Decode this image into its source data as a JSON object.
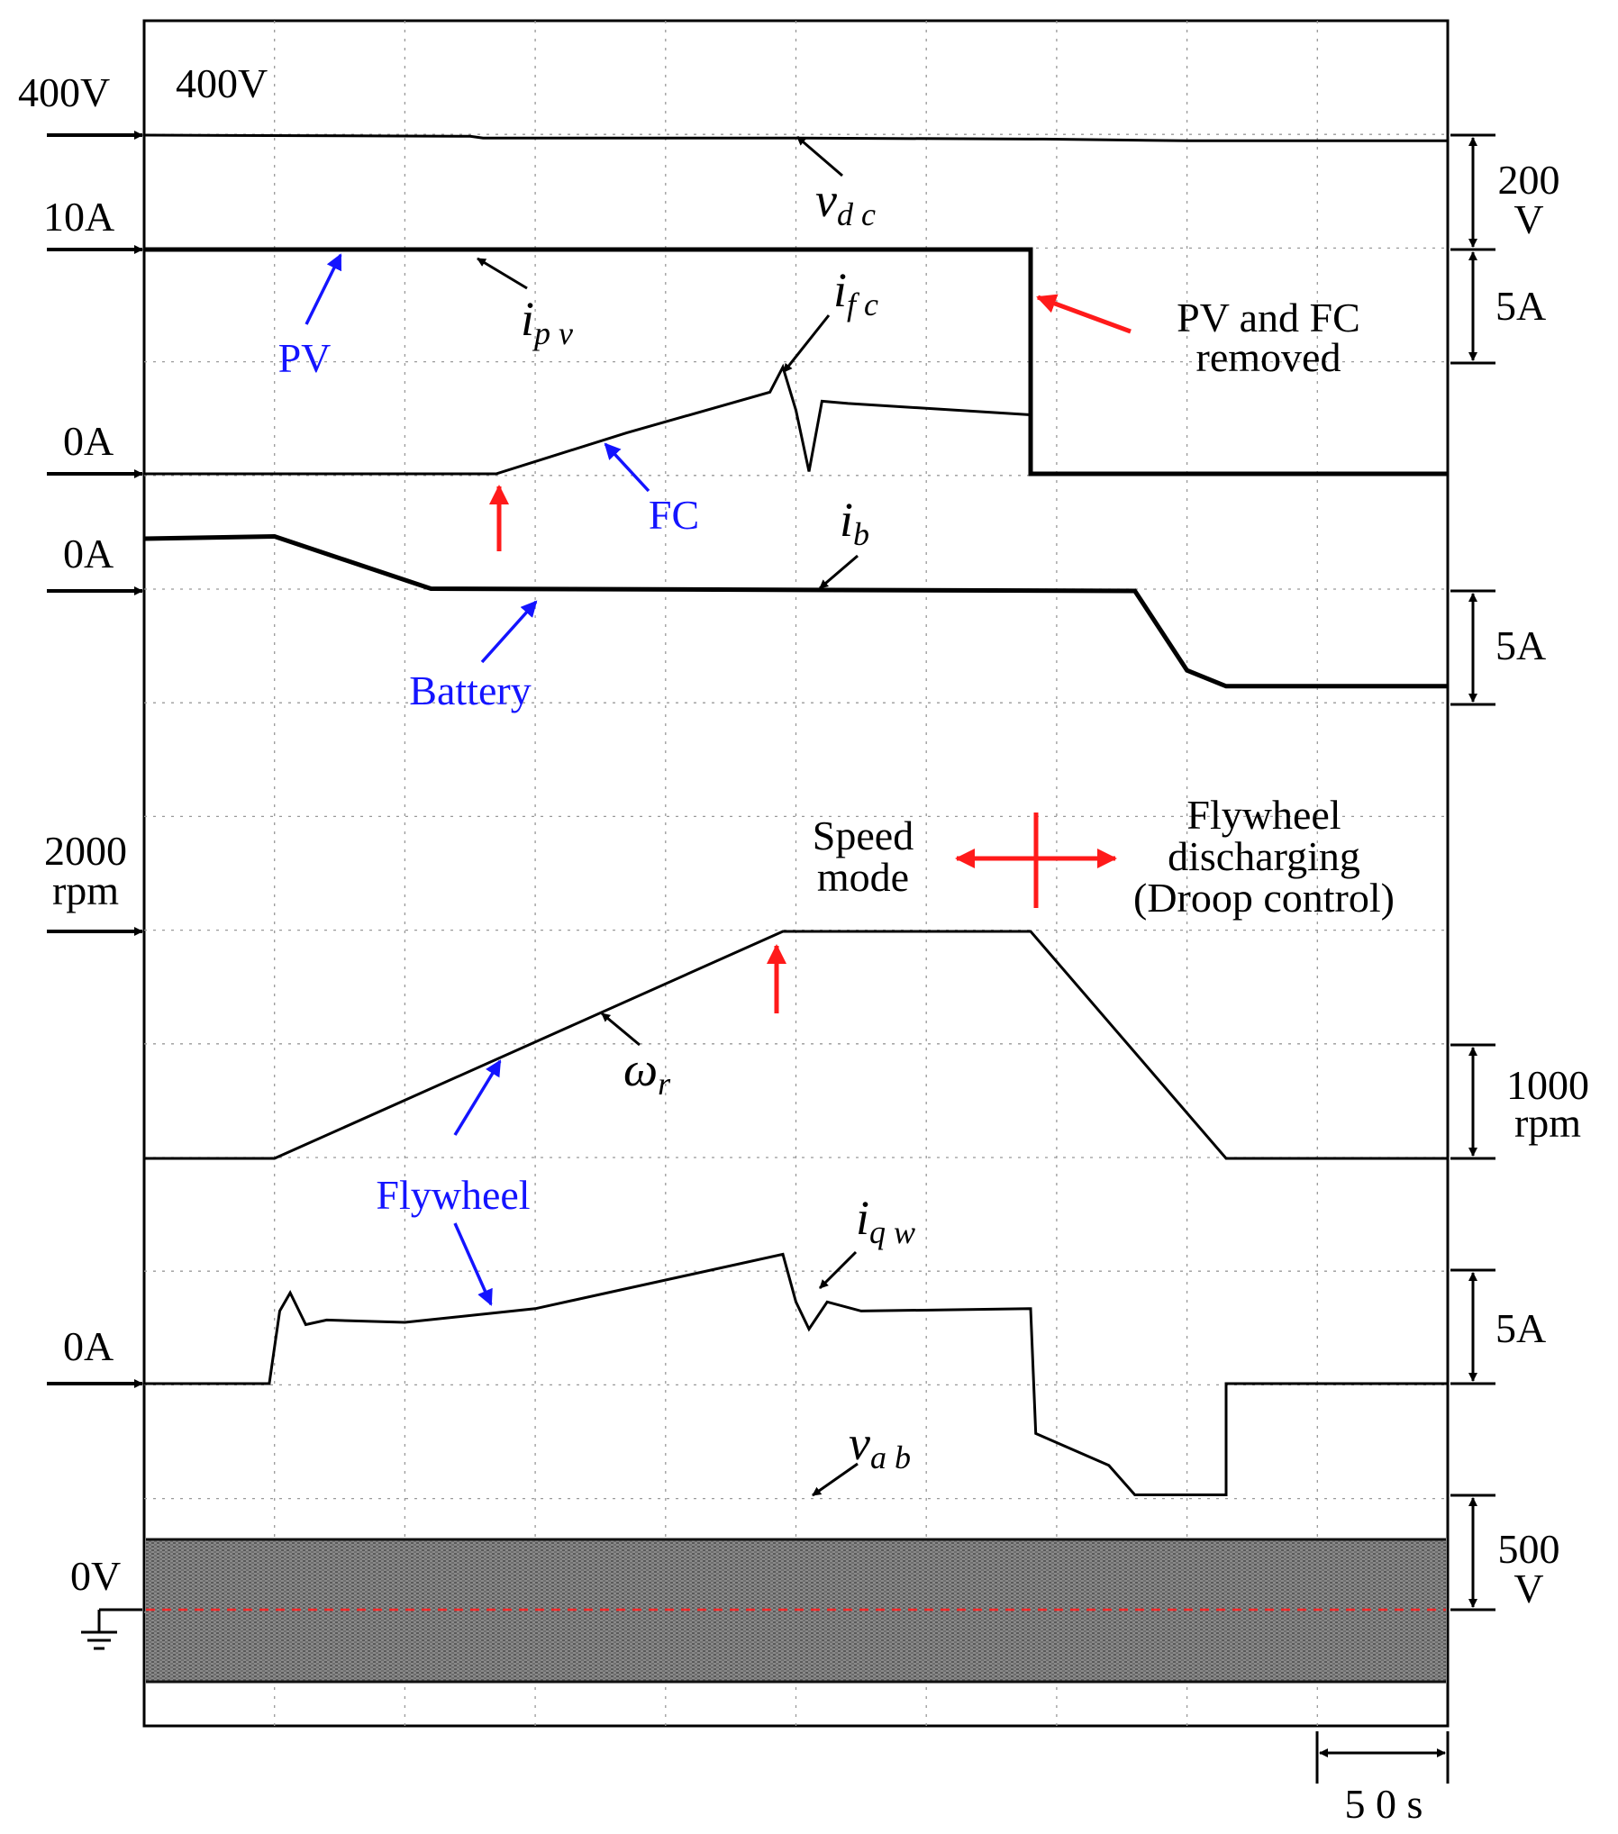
{
  "chart_data": {
    "type": "line",
    "time_per_div": "5 0 s",
    "x": {
      "start": 0,
      "end": 500,
      "units": "s"
    },
    "grid": true,
    "series": [
      {
        "name": "v_dc",
        "symbol": {
          "main": "v",
          "sub": "d c"
        },
        "level_label": "400V",
        "level_label_outer": "400V",
        "scale_label": "200\nV",
        "points": [
          [
            0,
            400
          ],
          [
            125,
            398
          ],
          [
            130,
            395
          ],
          [
            245,
            395
          ],
          [
            345,
            393
          ],
          [
            400,
            390
          ],
          [
            500,
            390
          ]
        ]
      },
      {
        "name": "i_pv",
        "symbol": {
          "main": "i",
          "sub": "p v"
        },
        "level_label": "10A",
        "scale_label": "5A",
        "points": [
          [
            0,
            10
          ],
          [
            340,
            10
          ],
          [
            340,
            0
          ],
          [
            500,
            0
          ]
        ]
      },
      {
        "name": "i_fc",
        "symbol": {
          "main": "i",
          "sub": "f c"
        },
        "zero_label": "0A",
        "points": [
          [
            0,
            0
          ],
          [
            135,
            0
          ],
          [
            185,
            1.8
          ],
          [
            240,
            3.6
          ],
          [
            245,
            4.7
          ],
          [
            250,
            2.8
          ],
          [
            255,
            0.1
          ],
          [
            260,
            3.2
          ],
          [
            270,
            3.1
          ],
          [
            340,
            2.6
          ],
          [
            340,
            0
          ],
          [
            500,
            0
          ]
        ]
      },
      {
        "name": "i_b",
        "symbol": {
          "main": "i",
          "sub": "b"
        },
        "zero_label": "0A",
        "scale_label": "5A",
        "points": [
          [
            0,
            2.3
          ],
          [
            50,
            2.4
          ],
          [
            110,
            0.1
          ],
          [
            380,
            0
          ],
          [
            400,
            -3.5
          ],
          [
            415,
            -4.2
          ],
          [
            500,
            -4.2
          ]
        ]
      },
      {
        "name": "omega_r",
        "symbol": {
          "main": "ω",
          "sub": "r"
        },
        "level_label": "2000\nrpm",
        "scale_label": "1000\nrpm",
        "points": [
          [
            0,
            0
          ],
          [
            50,
            0
          ],
          [
            245,
            2000
          ],
          [
            340,
            2000
          ],
          [
            415,
            0
          ],
          [
            500,
            0
          ]
        ]
      },
      {
        "name": "i_qw",
        "symbol": {
          "main": "i",
          "sub": "q w"
        },
        "zero_label": "0A",
        "scale_label": "5A",
        "points": [
          [
            0,
            0
          ],
          [
            48,
            0
          ],
          [
            52,
            3.2
          ],
          [
            56,
            4
          ],
          [
            62,
            2.6
          ],
          [
            70,
            2.8
          ],
          [
            100,
            2.7
          ],
          [
            150,
            3.3
          ],
          [
            245,
            5.7
          ],
          [
            250,
            3.6
          ],
          [
            255,
            2.4
          ],
          [
            262,
            3.6
          ],
          [
            275,
            3.2
          ],
          [
            340,
            3.3
          ],
          [
            342,
            -2.2
          ],
          [
            370,
            -3.6
          ],
          [
            380,
            -4.9
          ],
          [
            415,
            -4.9
          ],
          [
            415,
            0
          ],
          [
            500,
            0
          ]
        ]
      },
      {
        "name": "v_ab",
        "symbol": {
          "main": "v",
          "sub": "a b"
        },
        "zero_label": "0V",
        "scale_label": "500\nV",
        "amplitude": 300
      }
    ],
    "annotations": [
      "PV",
      "FC",
      "Battery",
      "Flywheel",
      "PV and FC\nremoved",
      "Speed\nmode",
      "Flywheel\ndischarging\n(Droop control)"
    ]
  }
}
